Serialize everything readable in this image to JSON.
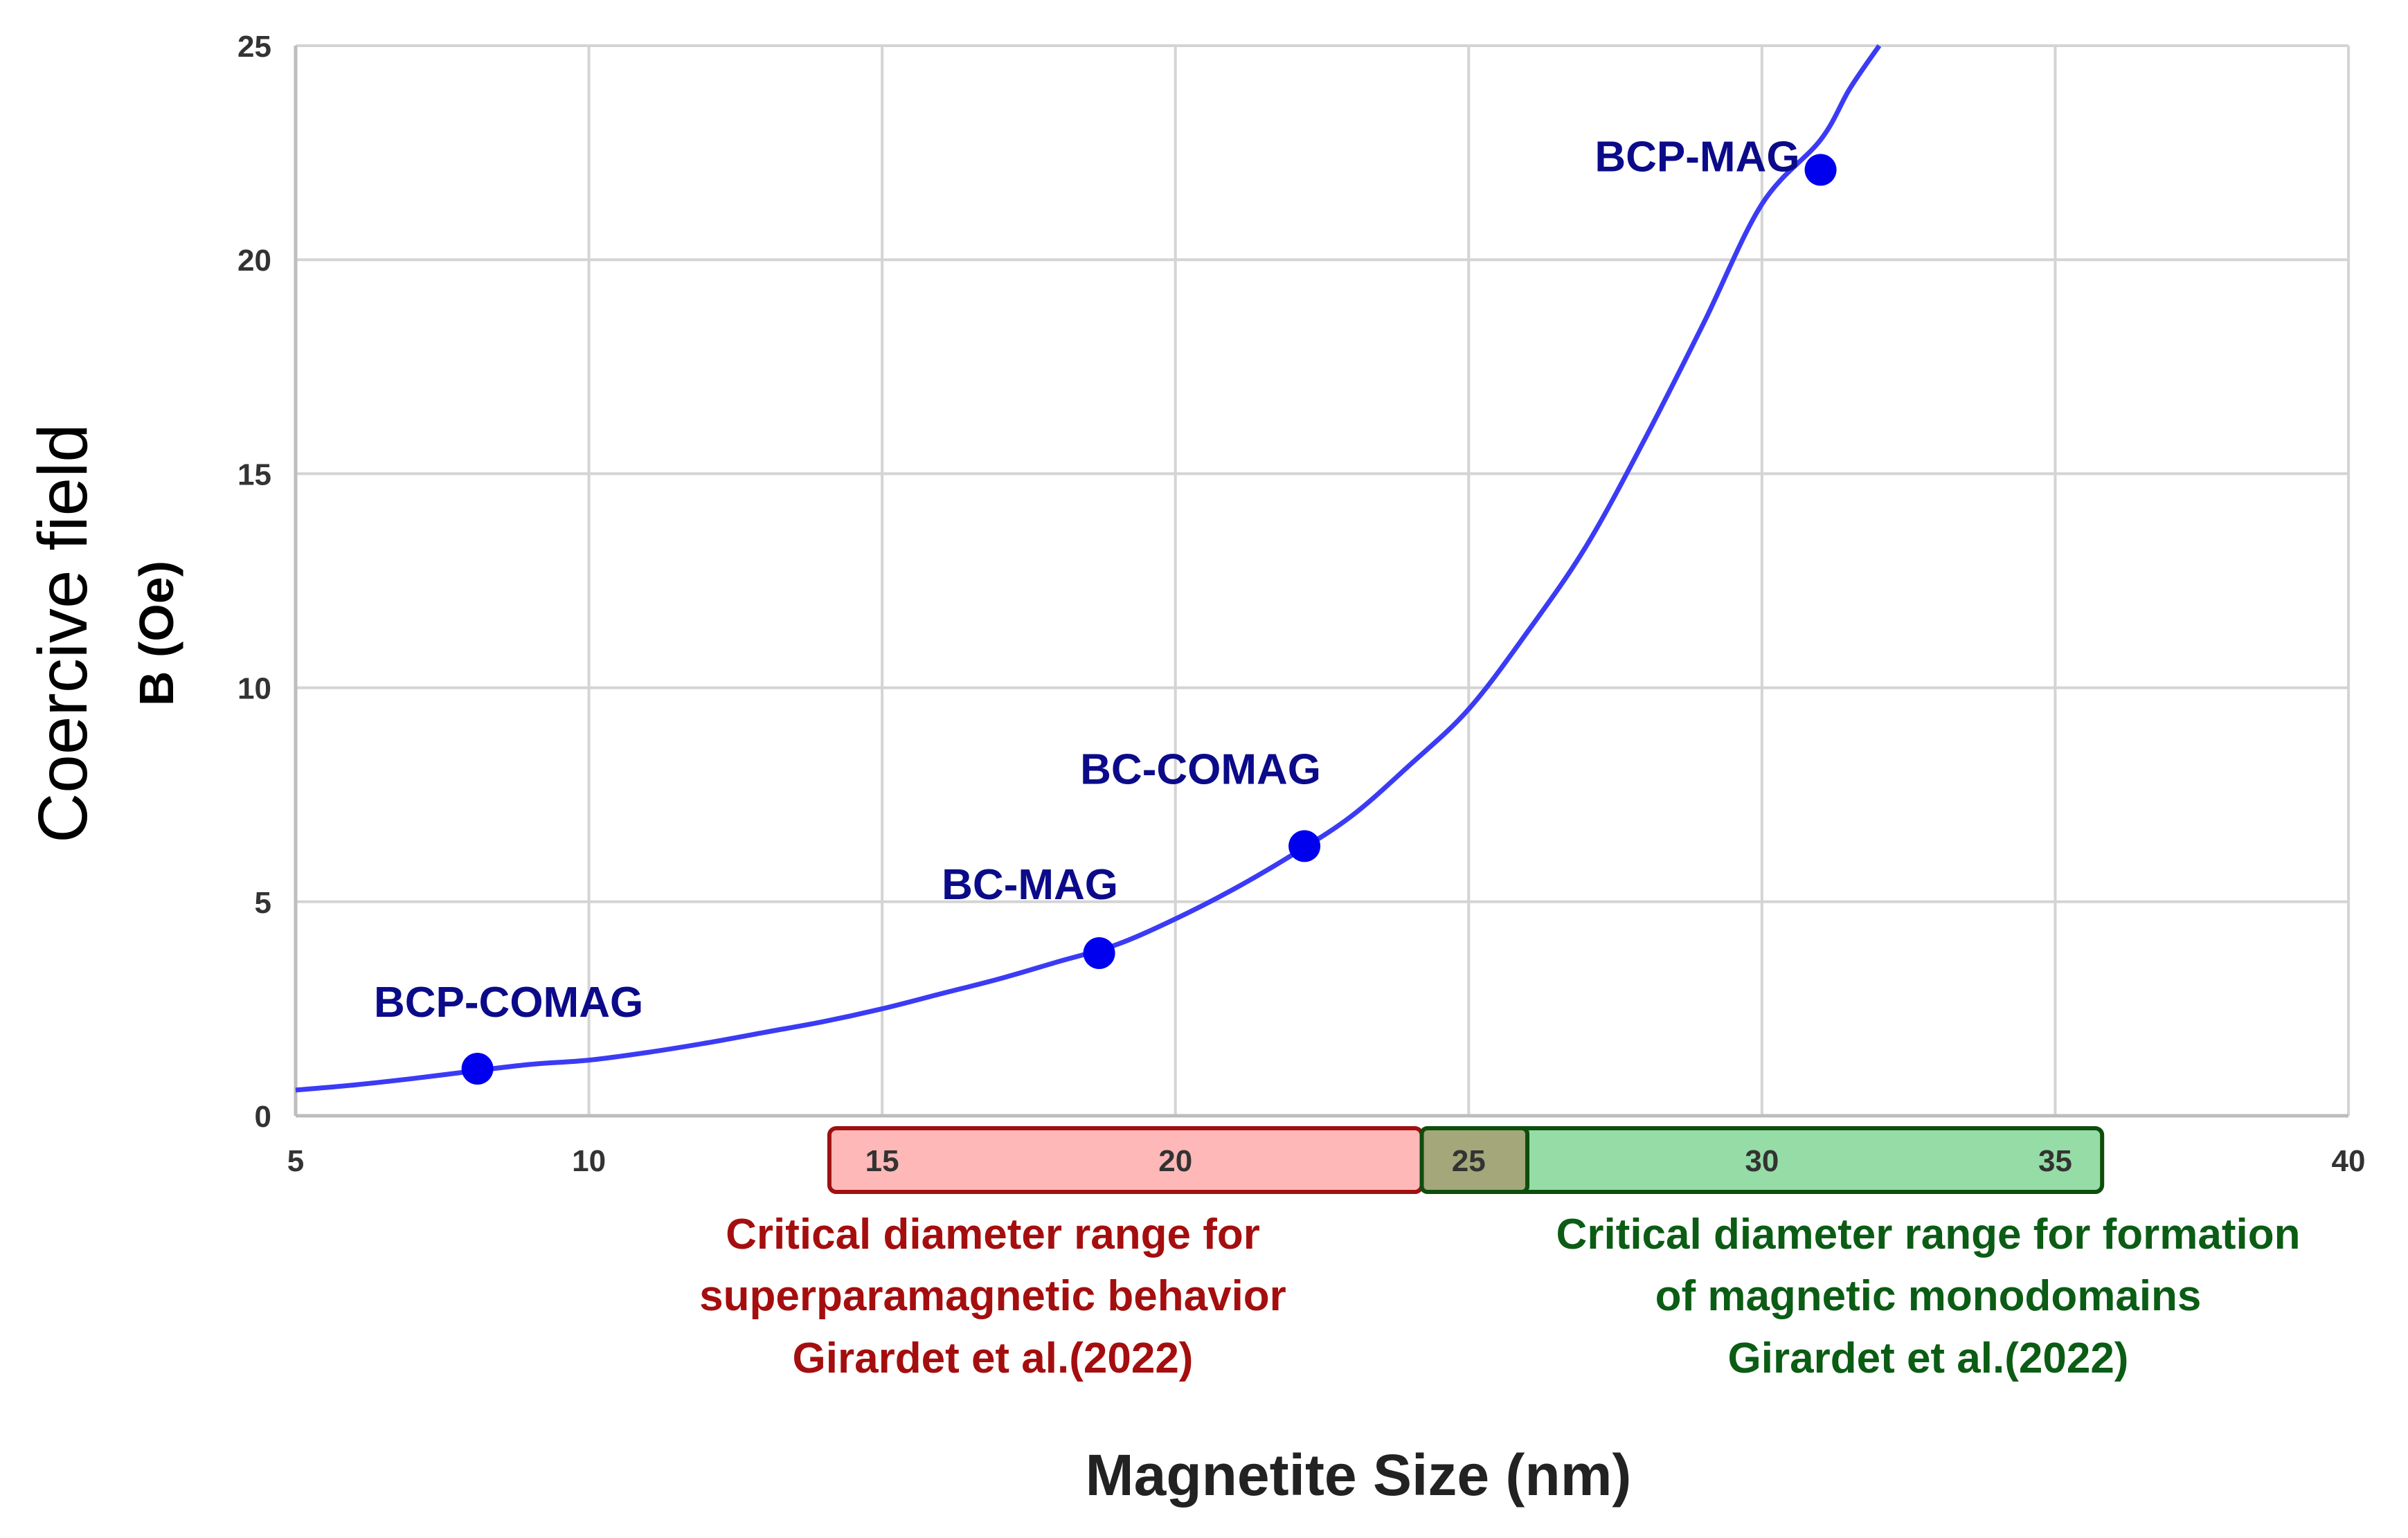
{
  "colors": {
    "curve": "#3b3bf5",
    "points": "#0000ee",
    "grid": "#d4d4d4",
    "axis": "#bdbdbd",
    "point_label": "#0b0b8a",
    "red_band_fill": "#ffb8b8",
    "red_band_stroke": "#a01010",
    "red_text": "#a50e0e",
    "green_band_fill": "#96dca6",
    "green_band_stroke": "#0d4d0d",
    "green_text": "#0b5c14",
    "overlap_fill": "#a3a77a"
  },
  "chart_data": {
    "type": "scatter",
    "xlabel": "Magnetite Size (nm)",
    "ylabel": [
      "Coercive field",
      "B (Oe)"
    ],
    "xlim": [
      5,
      40
    ],
    "ylim": [
      0,
      25
    ],
    "xticks": [
      5,
      10,
      15,
      20,
      25,
      30,
      35,
      40
    ],
    "yticks": [
      0,
      5,
      10,
      15,
      20,
      25
    ],
    "grid": true,
    "points": [
      {
        "label": "BCP-COMAG",
        "x": 8.1,
        "y": 1.1
      },
      {
        "label": "BC-MAG",
        "x": 18.7,
        "y": 3.8
      },
      {
        "label": "BC-COMAG",
        "x": 22.2,
        "y": 6.3
      },
      {
        "label": "BCP-MAG",
        "x": 31.0,
        "y": 22.1
      }
    ],
    "fit_curve": {
      "type": "exponential",
      "x": [
        5,
        6,
        7,
        8,
        9,
        10,
        11,
        12,
        13,
        14,
        15,
        16,
        17,
        18,
        19,
        20,
        21,
        22,
        23,
        24,
        25,
        26,
        27,
        28,
        29,
        30,
        31,
        31.5,
        32
      ],
      "y": [
        0.6,
        0.72,
        0.87,
        1.04,
        1.2,
        1.3,
        1.48,
        1.7,
        1.95,
        2.2,
        2.5,
        2.85,
        3.2,
        3.6,
        4.0,
        4.6,
        5.3,
        6.1,
        7.0,
        8.2,
        9.5,
        11.3,
        13.3,
        15.8,
        18.5,
        21.3,
        22.8,
        24.0,
        25.0
      ]
    },
    "ranges": [
      {
        "name": "superparamagnetic",
        "x_start": 14.1,
        "x_end": 24.2,
        "labels": [
          "15",
          "20"
        ],
        "caption": [
          "Critical diameter range for",
          "superparamagnetic behavior",
          "Girardet et al.(2022)"
        ]
      },
      {
        "name": "monodomain",
        "x_start": 24.2,
        "x_end": 35.8,
        "labels": [
          "30",
          "35"
        ],
        "caption": [
          "Critical diameter range for formation",
          "of magnetic monodomains",
          "Girardet et al.(2022)"
        ]
      }
    ],
    "overlap": {
      "x_start": 24.2,
      "x_end": 26.0,
      "label": "25"
    }
  }
}
